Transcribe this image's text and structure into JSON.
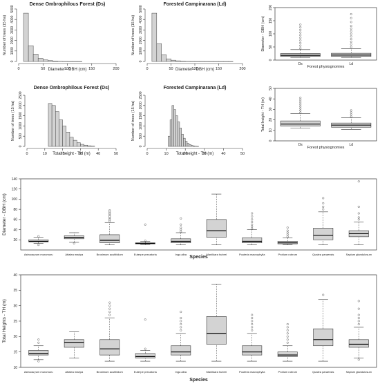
{
  "chart_data": [
    {
      "id": "hist-dbh-ds",
      "type": "histogram",
      "title": "Dense Ombrophilous Forest (Ds)",
      "xlabel": "Diameter - DBH (cm)",
      "ylabel": "Number of trees (15 ha)",
      "xlim": [
        0,
        200
      ],
      "ylim": [
        0,
        5000
      ],
      "xticks": [
        "0",
        "50",
        "100",
        "150",
        "200"
      ],
      "yticks": [
        "0",
        "1000",
        "2000",
        "3000",
        "4000",
        "5000"
      ],
      "bin_width": 10,
      "bin_start": 10,
      "counts": [
        4600,
        1500,
        700,
        300,
        150,
        80,
        40,
        20,
        10,
        5,
        3,
        2
      ]
    },
    {
      "id": "hist-dbh-ld",
      "type": "histogram",
      "title": "Forested Campinarana (Ld)",
      "xlabel": "Diameter - DBH (cm)",
      "ylabel": "Number of trees (15 ha)",
      "xlim": [
        0,
        200
      ],
      "ylim": [
        0,
        5000
      ],
      "xticks": [
        "0",
        "50",
        "100",
        "150",
        "200"
      ],
      "yticks": [
        "0",
        "1000",
        "2000",
        "3000",
        "4000",
        "5000"
      ],
      "bin_width": 10,
      "bin_start": 10,
      "counts": [
        4600,
        1700,
        650,
        250,
        120,
        60,
        30,
        15,
        8,
        5,
        3,
        2,
        1,
        1,
        1,
        1,
        1
      ]
    },
    {
      "id": "box-dbh-phys",
      "type": "box",
      "title": "",
      "xlabel": "Forest physiognomies",
      "ylabel": "Diameter - DBH (cm)",
      "ylim": [
        0,
        200
      ],
      "yticks": [
        "0",
        "50",
        "100",
        "150",
        "200"
      ],
      "categories": [
        "Ds",
        "Ld"
      ],
      "boxes": [
        {
          "min": 10,
          "q1": 14,
          "median": 18,
          "q3": 25,
          "max": 40,
          "outliers": [
            45,
            55,
            65,
            75,
            85,
            95,
            105,
            115,
            125,
            135
          ]
        },
        {
          "min": 10,
          "q1": 14,
          "median": 19,
          "q3": 26,
          "max": 43,
          "outliers": [
            50,
            60,
            70,
            80,
            90,
            100,
            110,
            120,
            130,
            145,
            160,
            175
          ]
        }
      ]
    },
    {
      "id": "hist-th-ds",
      "type": "histogram",
      "title": "Dense Ombrophilous Forest (Ds)",
      "xlabel": "Total height - TH (m)",
      "ylabel": "Number of trees (15 ha)",
      "xlim": [
        0,
        50
      ],
      "ylim": [
        0,
        2500
      ],
      "xticks": [
        "0",
        "10",
        "20",
        "30",
        "40",
        "50"
      ],
      "yticks": [
        "0",
        "500",
        "1000",
        "1500",
        "2000",
        "2500"
      ],
      "bin_width": 2,
      "bin_start": 12,
      "counts": [
        2100,
        2000,
        1700,
        1300,
        1000,
        700,
        450,
        300,
        180,
        100,
        60,
        30,
        15
      ]
    },
    {
      "id": "hist-th-ld",
      "type": "histogram",
      "title": "Forested Campinarana (Ld)",
      "xlabel": "Total height - TH (m)",
      "ylabel": "Number of trees (15 ha)",
      "xlim": [
        0,
        50
      ],
      "ylim": [
        0,
        2500
      ],
      "xticks": [
        "0",
        "10",
        "20",
        "30",
        "40",
        "50"
      ],
      "yticks": [
        "0",
        "500",
        "1000",
        "1500",
        "2000",
        "2500"
      ],
      "bin_width": 1,
      "bin_start": 11,
      "counts": [
        500,
        1300,
        2000,
        1800,
        1500,
        1200,
        900,
        600,
        400,
        250,
        150,
        90,
        50,
        25,
        10,
        5
      ]
    },
    {
      "id": "box-th-phys",
      "type": "box",
      "title": "",
      "xlabel": "Forest physiognomies",
      "ylabel": "Total height - TH (m)",
      "ylim": [
        0,
        50
      ],
      "yticks": [
        "0",
        "10",
        "20",
        "30",
        "40",
        "50"
      ],
      "categories": [
        "Ds",
        "Ld"
      ],
      "boxes": [
        {
          "min": 12,
          "q1": 14,
          "median": 16,
          "q3": 19,
          "max": 26,
          "outliers": [
            27,
            29,
            31,
            33,
            35,
            37,
            39,
            41
          ]
        },
        {
          "min": 11,
          "q1": 13,
          "median": 15,
          "q3": 17,
          "max": 22,
          "outliers": [
            23,
            25,
            27,
            29
          ]
        }
      ]
    },
    {
      "id": "box-dbh-species",
      "type": "box",
      "title": "",
      "xlabel": "Species",
      "ylabel": "Diameter - DBH (cm)",
      "ylim": [
        0,
        140
      ],
      "yticks": [
        "20",
        "40",
        "60",
        "80",
        "100",
        "120",
        "140"
      ],
      "categories": [
        "Astrocaryum murumuru",
        "Attalea maripa",
        "Brosimum acutifolium",
        "Euterpe precatoria",
        "Inga alba",
        "Manilkara huberi",
        "Pouteria macrophylla",
        "Protium rubrum",
        "Qualea paraensis",
        "Sapium glandulosum"
      ],
      "boxes": [
        {
          "min": 13,
          "q1": 16,
          "median": 17,
          "q3": 20,
          "max": 25,
          "outliers": [
            10,
            27
          ]
        },
        {
          "min": 15,
          "q1": 22,
          "median": 25,
          "q3": 28,
          "max": 34,
          "outliers": [
            13
          ]
        },
        {
          "min": 10,
          "q1": 14,
          "median": 19,
          "q3": 30,
          "max": 54,
          "outliers": [
            57,
            60,
            63,
            66,
            69,
            72,
            75,
            78
          ]
        },
        {
          "min": 10,
          "q1": 12,
          "median": 13,
          "q3": 14,
          "max": 17,
          "outliers": [
            18,
            50
          ]
        },
        {
          "min": 10,
          "q1": 14,
          "median": 17,
          "q3": 22,
          "max": 34,
          "outliers": [
            36,
            40,
            44,
            50,
            62
          ]
        },
        {
          "min": 10,
          "q1": 25,
          "median": 38,
          "q3": 60,
          "max": 110,
          "outliers": []
        },
        {
          "min": 10,
          "q1": 14,
          "median": 17,
          "q3": 24,
          "max": 40,
          "outliers": [
            42,
            46,
            50,
            55,
            60,
            66,
            72
          ]
        },
        {
          "min": 10,
          "q1": 12,
          "median": 14,
          "q3": 17,
          "max": 24,
          "outliers": [
            26,
            30,
            34,
            38,
            44
          ]
        },
        {
          "min": 10,
          "q1": 20,
          "median": 29,
          "q3": 43,
          "max": 75,
          "outliers": [
            80,
            85,
            92,
            102
          ]
        },
        {
          "min": 10,
          "q1": 26,
          "median": 32,
          "q3": 38,
          "max": 55,
          "outliers": [
            60,
            64,
            72,
            85,
            135
          ]
        }
      ]
    },
    {
      "id": "box-th-species",
      "type": "box",
      "title": "",
      "xlabel": "Species",
      "ylabel": "Total Heights - TH (m)",
      "ylim": [
        10,
        40
      ],
      "yticks": [
        "10",
        "15",
        "20",
        "25",
        "30",
        "35",
        "40"
      ],
      "categories": [
        "Astrocaryum murumuru",
        "Attalea maripa",
        "Brosimum acutifolium",
        "Euterpe precatoria",
        "Inga alba",
        "Manilkara huberi",
        "Pouteria macrophylla",
        "Protium rubrum",
        "Qualea paraensis",
        "Sapium glandulosum"
      ],
      "boxes": [
        {
          "min": 12.5,
          "q1": 14,
          "median": 14.5,
          "q3": 15.5,
          "max": 17,
          "outliers": [
            12,
            18,
            19
          ]
        },
        {
          "min": 13,
          "q1": 16.5,
          "median": 18,
          "q3": 19,
          "max": 21.5,
          "outliers": []
        },
        {
          "min": 12,
          "q1": 14,
          "median": 16,
          "q3": 19,
          "max": 26,
          "outliers": [
            27,
            28,
            29,
            30,
            31
          ]
        },
        {
          "min": 12,
          "q1": 13,
          "median": 13.5,
          "q3": 14.5,
          "max": 15.5,
          "outliers": [
            16,
            25.5
          ]
        },
        {
          "min": 12,
          "q1": 14,
          "median": 15,
          "q3": 17,
          "max": 21,
          "outliers": [
            22,
            23,
            24,
            25,
            26,
            28
          ]
        },
        {
          "min": 12,
          "q1": 17.5,
          "median": 21,
          "q3": 26.5,
          "max": 37,
          "outliers": []
        },
        {
          "min": 12,
          "q1": 14,
          "median": 15,
          "q3": 17,
          "max": 21,
          "outliers": [
            22,
            23,
            24,
            25,
            26,
            27
          ]
        },
        {
          "min": 12,
          "q1": 13.5,
          "median": 14,
          "q3": 15,
          "max": 17,
          "outliers": [
            18,
            19,
            20,
            21,
            22,
            23,
            24
          ]
        },
        {
          "min": 12,
          "q1": 17,
          "median": 19,
          "q3": 22.5,
          "max": 32,
          "outliers": [
            33.5
          ]
        },
        {
          "min": 13,
          "q1": 16.5,
          "median": 17.5,
          "q3": 19,
          "max": 23,
          "outliers": [
            12.5,
            24,
            25,
            26,
            27,
            29,
            31.5
          ]
        }
      ]
    }
  ]
}
